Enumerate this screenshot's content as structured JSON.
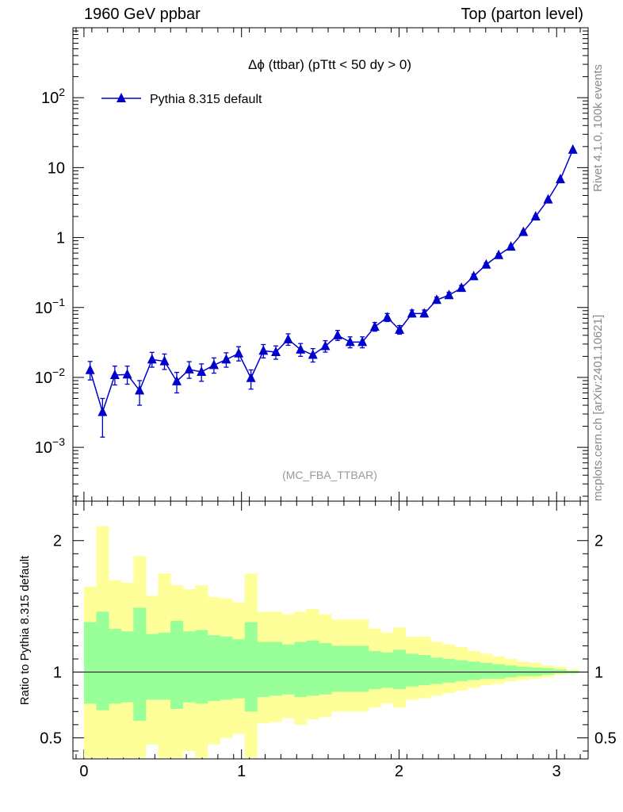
{
  "header": {
    "left": "1960 GeV ppbar",
    "right": "Top (parton level)"
  },
  "side_labels": {
    "rivet": "Rivet 4.1.0,  100k events",
    "mcplots": "mcplots.cern.ch [arXiv:2401.10621]"
  },
  "colors": {
    "series": "#0000cc",
    "band_outer": "#ffff99",
    "band_inner": "#99ff99",
    "watermark": "#999999",
    "side_text": "#8a8a8a"
  },
  "chart_data": [
    {
      "type": "line",
      "title": "Δϕ (ttbar) (pTtt < 50 dy > 0)",
      "watermark": "(MC_FBA_TTBAR)",
      "yscale": "log",
      "xlim": [
        -0.07,
        3.2
      ],
      "ylim": [
        0.00017,
        1000
      ],
      "xticks": [
        0,
        1,
        2,
        3
      ],
      "yticks": [
        {
          "value": 0.001,
          "base": "10",
          "exp": "−3"
        },
        {
          "value": 0.01,
          "base": "10",
          "exp": "−2"
        },
        {
          "value": 0.1,
          "base": "10",
          "exp": "−1"
        },
        {
          "value": 1,
          "base": "1",
          "exp": ""
        },
        {
          "value": 10,
          "base": "10",
          "exp": ""
        },
        {
          "value": 100,
          "base": "10",
          "exp": "2"
        }
      ],
      "legend": {
        "position": "top-left",
        "label": "Pythia 8.315 default",
        "marker": "triangle-up"
      },
      "series": [
        {
          "name": "Pythia 8.315 default",
          "x": [
            0.039,
            0.118,
            0.196,
            0.275,
            0.353,
            0.432,
            0.511,
            0.589,
            0.668,
            0.746,
            0.825,
            0.903,
            0.982,
            1.06,
            1.139,
            1.218,
            1.296,
            1.375,
            1.453,
            1.532,
            1.61,
            1.689,
            1.767,
            1.846,
            1.925,
            2.003,
            2.082,
            2.16,
            2.239,
            2.317,
            2.396,
            2.474,
            2.553,
            2.632,
            2.71,
            2.789,
            2.867,
            2.946,
            3.024,
            3.103
          ],
          "y": [
            0.0127,
            0.0032,
            0.0108,
            0.011,
            0.0065,
            0.018,
            0.017,
            0.0088,
            0.013,
            0.012,
            0.015,
            0.018,
            0.022,
            0.0098,
            0.024,
            0.023,
            0.035,
            0.025,
            0.021,
            0.028,
            0.04,
            0.032,
            0.032,
            0.053,
            0.072,
            0.048,
            0.082,
            0.082,
            0.128,
            0.15,
            0.19,
            0.28,
            0.41,
            0.56,
            0.74,
            1.2,
            2.0,
            3.5,
            6.8,
            18.0
          ],
          "err_up": [
            0.0042,
            0.0018,
            0.0037,
            0.0035,
            0.0025,
            0.0048,
            0.0046,
            0.003,
            0.0038,
            0.0036,
            0.004,
            0.0045,
            0.0055,
            0.003,
            0.0055,
            0.0052,
            0.007,
            0.0055,
            0.0048,
            0.0055,
            0.007,
            0.006,
            0.006,
            0.008,
            0.01,
            0.007,
            0.01,
            0.01,
            0.013,
            0.015,
            0.017,
            0.02,
            0.025,
            0.03,
            0.035,
            0.05,
            0.07,
            0.1,
            0.15,
            0.3
          ],
          "err_down": [
            0.0035,
            0.0018,
            0.003,
            0.003,
            0.0025,
            0.004,
            0.004,
            0.0028,
            0.0033,
            0.0032,
            0.0035,
            0.004,
            0.0048,
            0.003,
            0.005,
            0.0048,
            0.0062,
            0.005,
            0.0044,
            0.005,
            0.0062,
            0.0055,
            0.0055,
            0.0072,
            0.009,
            0.0065,
            0.009,
            0.009,
            0.012,
            0.014,
            0.016,
            0.019,
            0.024,
            0.029,
            0.034,
            0.048,
            0.068,
            0.095,
            0.145,
            0.29
          ]
        }
      ]
    },
    {
      "type": "area",
      "ylabel": "Ratio to Pythia 8.315 default",
      "xlim": [
        -0.07,
        3.2
      ],
      "ylim": [
        0.34,
        2.3
      ],
      "xticks": [
        0,
        1,
        2,
        3
      ],
      "yticks": [
        0.5,
        1,
        2
      ],
      "reference_line": 1,
      "bin_edges": [
        0,
        0.0785,
        0.157,
        0.2355,
        0.314,
        0.3925,
        0.471,
        0.5495,
        0.628,
        0.7065,
        0.785,
        0.8635,
        0.942,
        1.0205,
        1.099,
        1.1775,
        1.256,
        1.3345,
        1.413,
        1.4915,
        1.57,
        1.6485,
        1.727,
        1.8055,
        1.884,
        1.9625,
        2.041,
        2.1195,
        2.198,
        2.2765,
        2.355,
        2.4335,
        2.512,
        2.5905,
        2.669,
        2.7475,
        2.826,
        2.9045,
        2.983,
        3.0615,
        3.14
      ],
      "inner_band": {
        "upper": [
          1.38,
          1.46,
          1.33,
          1.31,
          1.49,
          1.29,
          1.3,
          1.39,
          1.31,
          1.32,
          1.28,
          1.27,
          1.25,
          1.38,
          1.23,
          1.23,
          1.21,
          1.23,
          1.24,
          1.22,
          1.2,
          1.2,
          1.2,
          1.16,
          1.15,
          1.17,
          1.14,
          1.13,
          1.11,
          1.1,
          1.09,
          1.08,
          1.07,
          1.06,
          1.05,
          1.04,
          1.035,
          1.03,
          1.02,
          1.01
        ],
        "lower": [
          0.76,
          0.71,
          0.76,
          0.77,
          0.63,
          0.79,
          0.79,
          0.72,
          0.77,
          0.76,
          0.78,
          0.79,
          0.8,
          0.7,
          0.81,
          0.82,
          0.83,
          0.81,
          0.82,
          0.83,
          0.85,
          0.85,
          0.85,
          0.87,
          0.88,
          0.87,
          0.89,
          0.9,
          0.91,
          0.92,
          0.93,
          0.94,
          0.95,
          0.95,
          0.96,
          0.97,
          0.97,
          0.98,
          0.99,
          0.99
        ]
      },
      "outer_band": {
        "upper": [
          1.65,
          2.11,
          1.7,
          1.68,
          1.88,
          1.58,
          1.75,
          1.66,
          1.63,
          1.66,
          1.57,
          1.56,
          1.53,
          1.75,
          1.46,
          1.46,
          1.44,
          1.46,
          1.48,
          1.44,
          1.4,
          1.4,
          1.4,
          1.33,
          1.3,
          1.34,
          1.27,
          1.27,
          1.23,
          1.21,
          1.19,
          1.16,
          1.14,
          1.12,
          1.1,
          1.08,
          1.07,
          1.05,
          1.04,
          1.02
        ],
        "lower": [
          0.35,
          0.35,
          0.35,
          0.35,
          0.35,
          0.45,
          0.35,
          0.35,
          0.4,
          0.35,
          0.45,
          0.5,
          0.53,
          0.35,
          0.61,
          0.62,
          0.65,
          0.6,
          0.64,
          0.66,
          0.7,
          0.7,
          0.7,
          0.73,
          0.76,
          0.73,
          0.79,
          0.8,
          0.82,
          0.84,
          0.86,
          0.88,
          0.9,
          0.91,
          0.93,
          0.94,
          0.95,
          0.96,
          0.98,
          0.99
        ]
      }
    }
  ]
}
